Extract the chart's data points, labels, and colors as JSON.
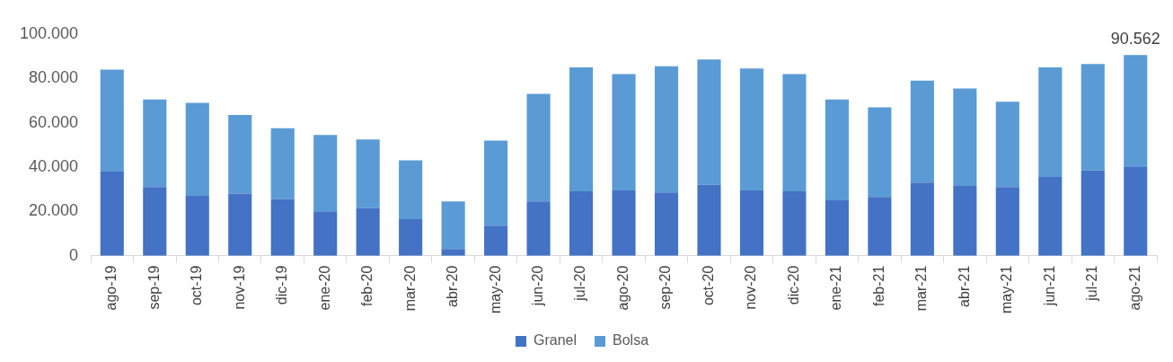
{
  "chart_data": {
    "type": "bar",
    "stacked": true,
    "categories": [
      "ago-19",
      "sep-19",
      "oct-19",
      "nov-19",
      "dic-19",
      "ene-20",
      "feb-20",
      "mar-20",
      "abr-20",
      "may-20",
      "jun-20",
      "jul-20",
      "ago-20",
      "sep-20",
      "oct-20",
      "nov-20",
      "dic-20",
      "ene-21",
      "feb-21",
      "mar-21",
      "abr-21",
      "may-21",
      "jun-21",
      "jul-21",
      "ago-21"
    ],
    "series": [
      {
        "name": "Granel",
        "color": "#4472c4",
        "values": [
          38000,
          31000,
          27000,
          28000,
          25500,
          20000,
          21500,
          16500,
          3000,
          13500,
          24500,
          29000,
          29500,
          28500,
          32000,
          29500,
          29000,
          25000,
          26500,
          33000,
          31500,
          31000,
          35500,
          38500,
          40000
        ]
      },
      {
        "name": "Bolsa",
        "color": "#5b9bd5",
        "values": [
          46000,
          39500,
          42000,
          35500,
          32000,
          34500,
          31000,
          26500,
          21500,
          38500,
          48500,
          56000,
          52500,
          57000,
          56500,
          55000,
          53000,
          45500,
          40500,
          46000,
          44000,
          38500,
          49500,
          48000,
          50562
        ]
      }
    ],
    "totals": [
      null,
      null,
      null,
      null,
      null,
      null,
      null,
      null,
      null,
      null,
      null,
      null,
      null,
      null,
      null,
      null,
      null,
      null,
      null,
      null,
      null,
      null,
      null,
      null,
      "90.562"
    ],
    "ylim": [
      0,
      100000
    ],
    "yticks": [
      {
        "value": 0,
        "label": "0"
      },
      {
        "value": 20000,
        "label": "20.000"
      },
      {
        "value": 40000,
        "label": "40.000"
      },
      {
        "value": 60000,
        "label": "60.000"
      },
      {
        "value": 80000,
        "label": "80.000"
      },
      {
        "value": 100000,
        "label": "100.000"
      }
    ],
    "grid": false,
    "legend": "bottom"
  }
}
